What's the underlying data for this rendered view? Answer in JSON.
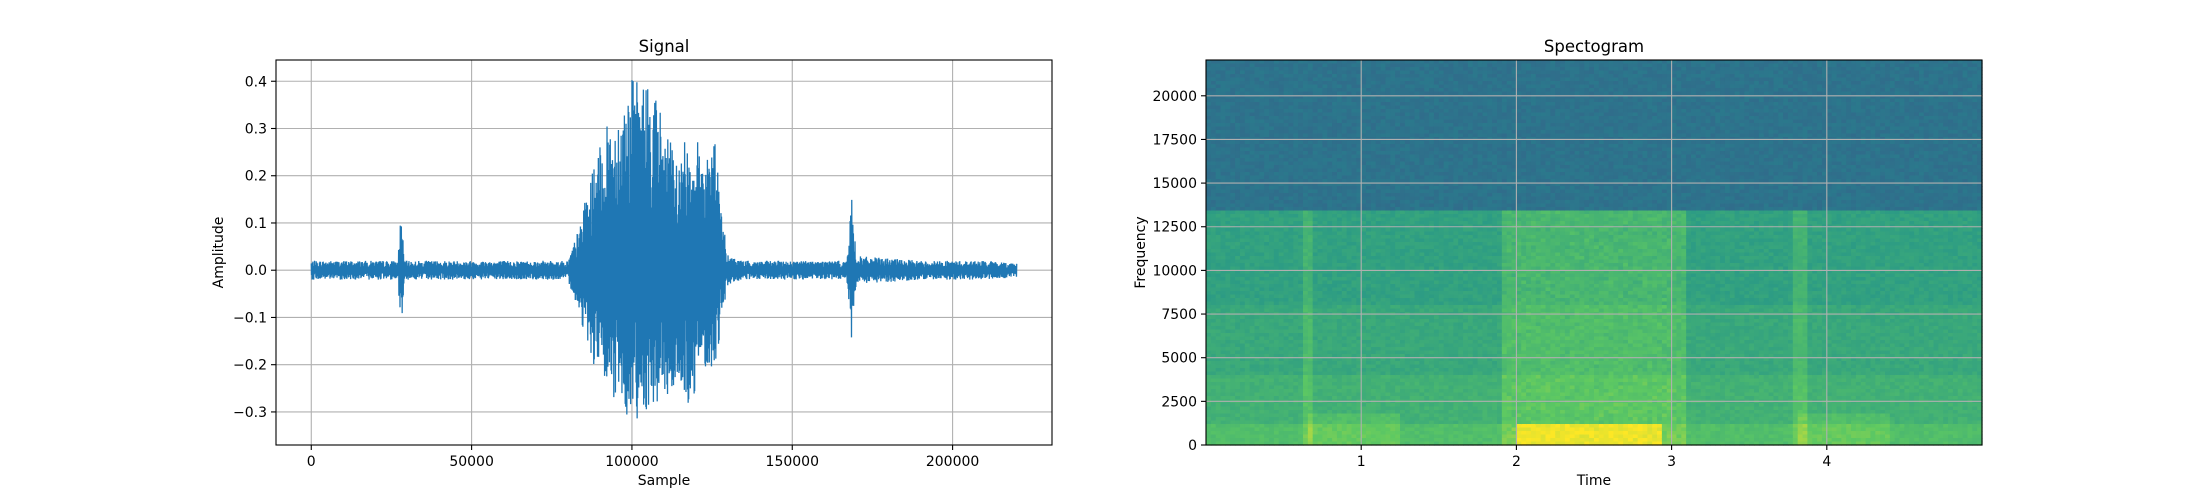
{
  "chart_data": [
    {
      "type": "line",
      "title": "Signal",
      "xlabel": "Sample",
      "ylabel": "Amplitude",
      "xlim": [
        -11000,
        231000
      ],
      "ylim": [
        -0.37,
        0.445
      ],
      "xticks": [
        0,
        50000,
        100000,
        150000,
        200000
      ],
      "xtick_labels": [
        "0",
        "50000",
        "100000",
        "150000",
        "200000"
      ],
      "yticks": [
        -0.3,
        -0.2,
        -0.1,
        0.0,
        0.1,
        0.2,
        0.3,
        0.4
      ],
      "ytick_labels": [
        "−0.3",
        "−0.2",
        "−0.1",
        "0.0",
        "0.1",
        "0.2",
        "0.3",
        "0.4"
      ],
      "grid": true,
      "line_color": "#1f77b4",
      "series": [
        {
          "x": [
            0,
            10000,
            20000,
            27000,
            28000,
            29000,
            40000,
            60000,
            80000,
            83000,
            88000,
            93000,
            98000,
            100000,
            103000,
            106000,
            110000,
            114000,
            118000,
            122000,
            126000,
            128000,
            130000,
            135000,
            150000,
            167000,
            168500,
            170000,
            190000,
            210000,
            220000
          ],
          "y_max": [
            0.02,
            0.02,
            0.02,
            0.02,
            0.13,
            0.02,
            0.02,
            0.02,
            0.02,
            0.08,
            0.22,
            0.32,
            0.37,
            0.41,
            0.4,
            0.41,
            0.32,
            0.23,
            0.3,
            0.26,
            0.28,
            0.12,
            0.03,
            0.02,
            0.02,
            0.02,
            0.155,
            0.03,
            0.02,
            0.02,
            0.015
          ],
          "y_min": [
            -0.02,
            -0.02,
            -0.02,
            -0.02,
            -0.13,
            -0.02,
            -0.02,
            -0.02,
            -0.02,
            -0.08,
            -0.2,
            -0.27,
            -0.3,
            -0.33,
            -0.3,
            -0.29,
            -0.28,
            -0.25,
            -0.3,
            -0.2,
            -0.22,
            -0.1,
            -0.03,
            -0.02,
            -0.02,
            -0.02,
            -0.155,
            -0.03,
            -0.02,
            -0.02,
            -0.015
          ]
        }
      ]
    },
    {
      "type": "heatmap",
      "title": "Spectogram",
      "xlabel": "Time",
      "ylabel": "Frequency",
      "xlim": [
        0,
        5.0
      ],
      "ylim": [
        0,
        22050
      ],
      "xticks": [
        1,
        2,
        3,
        4
      ],
      "xtick_labels": [
        "1",
        "2",
        "3",
        "4"
      ],
      "yticks": [
        0,
        2500,
        5000,
        7500,
        10000,
        12500,
        15000,
        17500,
        20000
      ],
      "ytick_labels": [
        "0",
        "2500",
        "5000",
        "7500",
        "10000",
        "12500",
        "15000",
        "17500",
        "20000"
      ],
      "grid": true,
      "colormap": [
        "#440154",
        "#3b528b",
        "#21918c",
        "#5ec962",
        "#fde725"
      ],
      "intensity_profile": {
        "frequency_bands": [
          {
            "from": 0,
            "to": 1200,
            "level": 0.7
          },
          {
            "from": 1200,
            "to": 4000,
            "level": 0.64
          },
          {
            "from": 4000,
            "to": 8000,
            "level": 0.6
          },
          {
            "from": 8000,
            "to": 13500,
            "level": 0.57
          },
          {
            "from": 13500,
            "to": 22050,
            "level": 0.38
          }
        ],
        "active_time_range": [
          1.9,
          3.1
        ],
        "active_boost": 0.12,
        "low_freq_peak_time_range": [
          2.0,
          2.95
        ],
        "transient_times": [
          0.65,
          3.82
        ]
      }
    }
  ]
}
